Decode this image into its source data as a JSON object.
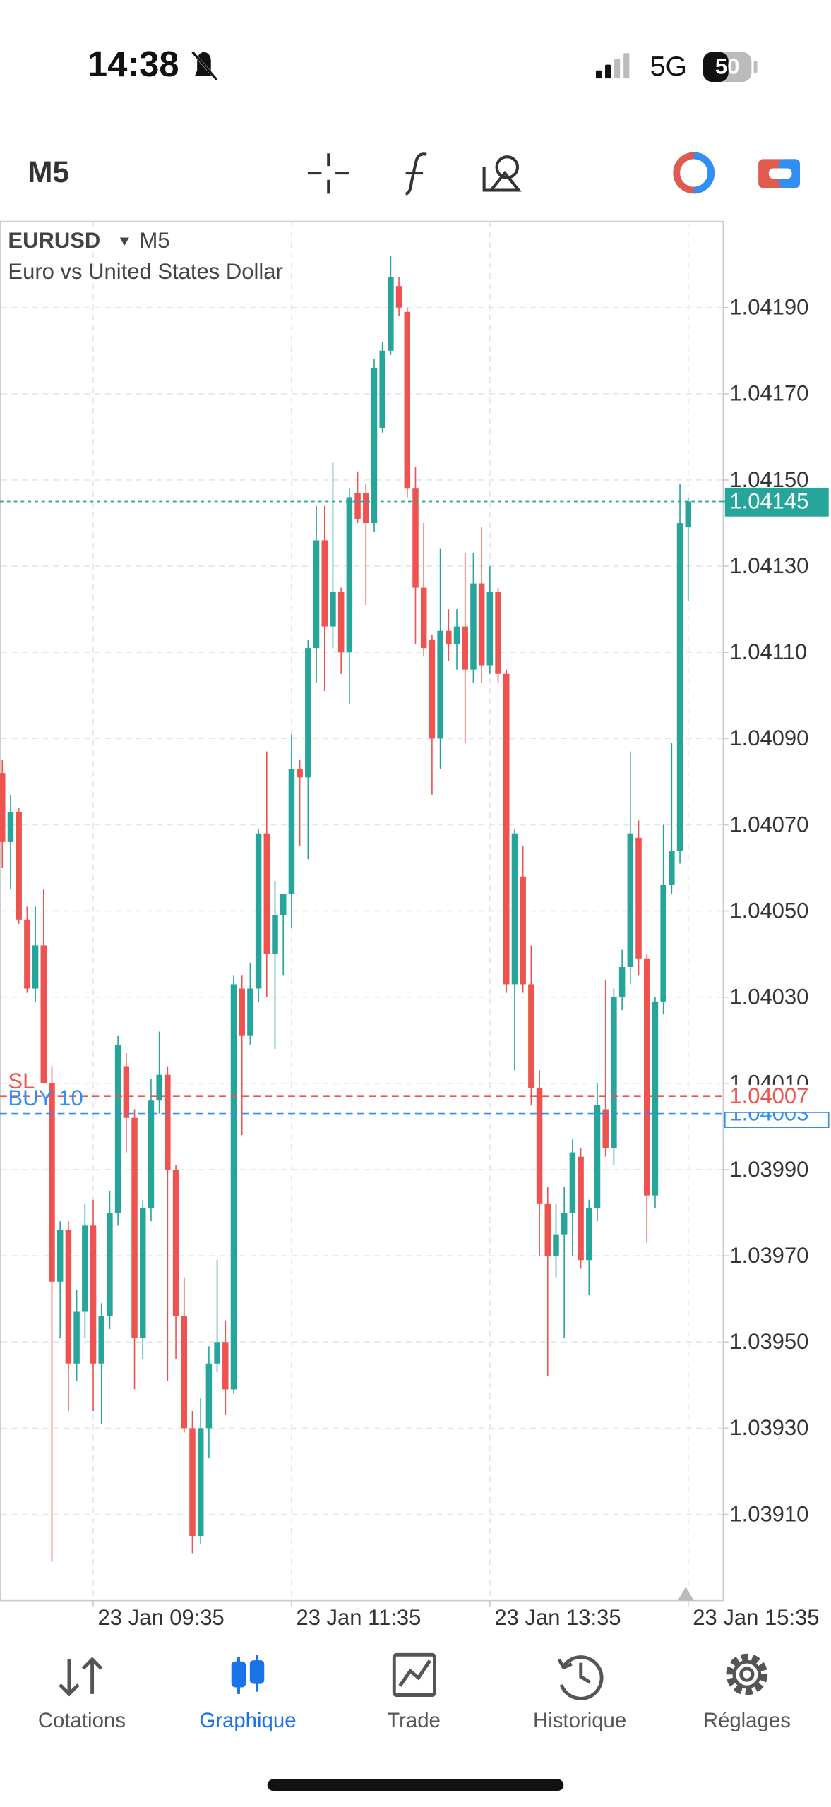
{
  "status_bar": {
    "time": "14:38",
    "network": "5G",
    "battery": "50"
  },
  "toolbar": {
    "timeframe": "M5"
  },
  "chart_data": {
    "type": "candlestick",
    "symbol": "EURUSD",
    "description": "Euro vs United States Dollar",
    "categories": [
      null,
      null,
      null,
      null,
      null,
      null,
      null,
      null,
      null,
      null,
      null,
      "23 Jan 09:35",
      null,
      null,
      null,
      null,
      null,
      null,
      null,
      null,
      null,
      null,
      null,
      null,
      null,
      null,
      null,
      null,
      null,
      null,
      null,
      null,
      null,
      null,
      null,
      "23 Jan 11:35",
      null,
      null,
      null,
      null,
      null,
      null,
      null,
      null,
      null,
      null,
      null,
      null,
      null,
      null,
      null,
      null,
      null,
      null,
      null,
      null,
      null,
      null,
      null,
      "23 Jan 13:35",
      null,
      null,
      null,
      null,
      null,
      null,
      null,
      null,
      null,
      null,
      null,
      null,
      null,
      null,
      null,
      null,
      null,
      null,
      null,
      null,
      null,
      null,
      null,
      "23 Jan 15:35"
    ],
    "open": [
      1.04082,
      1.04066,
      1.04073,
      1.04048,
      1.04032,
      1.04042,
      1.0401,
      1.03964,
      1.03976,
      1.03945,
      1.03957,
      1.03977,
      1.03945,
      1.03956,
      1.0398,
      1.04014,
      1.04002,
      1.03951,
      1.03981,
      1.04006,
      1.04012,
      1.0399,
      1.03956,
      1.0393,
      1.03905,
      1.0393,
      1.03945,
      1.0395,
      1.03939,
      1.04032,
      1.04021,
      1.04032,
      1.04068,
      1.0404,
      1.04049,
      1.04054,
      1.04083,
      1.04081,
      1.04111,
      1.04136,
      1.04116,
      1.04124,
      1.0411,
      1.04147,
      1.04147,
      1.0414,
      1.04162,
      1.0418,
      1.04195,
      1.04189,
      1.04148,
      1.04125,
      1.04113,
      1.0409,
      1.04115,
      1.04112,
      1.04116,
      1.04106,
      1.04126,
      1.04107,
      1.04124,
      1.04105,
      1.04033,
      1.04058,
      1.04033,
      1.04009,
      1.03982,
      1.0397,
      1.03975,
      1.0398,
      1.03993,
      1.03969,
      1.03981,
      1.04004,
      1.03995,
      1.0403,
      1.04037,
      1.04067,
      1.04039,
      1.03984,
      1.04029,
      1.04056,
      1.04064,
      1.04139
    ],
    "high": [
      1.04085,
      1.04077,
      1.04074,
      1.04051,
      1.04051,
      1.04055,
      1.04014,
      1.03978,
      1.03978,
      1.03962,
      1.03982,
      1.03983,
      1.03959,
      1.03985,
      1.04021,
      1.04017,
      1.04004,
      1.03983,
      1.04011,
      1.04022,
      1.04014,
      1.03991,
      1.03965,
      1.03934,
      1.03937,
      1.03949,
      1.03969,
      1.03955,
      1.04035,
      1.04035,
      1.04038,
      1.04069,
      1.04087,
      1.04057,
      1.04051,
      1.04091,
      1.04085,
      1.04113,
      1.04144,
      1.04144,
      1.04154,
      1.04125,
      1.04148,
      1.04152,
      1.04149,
      1.04178,
      1.04182,
      1.04202,
      1.04197,
      1.0419,
      1.04153,
      1.0414,
      1.04114,
      1.04134,
      1.0412,
      1.0412,
      1.04133,
      1.04133,
      1.04139,
      1.0413,
      1.04125,
      1.04106,
      1.04069,
      1.04065,
      1.04042,
      1.04013,
      1.03986,
      1.03982,
      1.03986,
      1.03997,
      1.03995,
      1.03983,
      1.0401,
      1.04034,
      1.04032,
      1.04041,
      1.04087,
      1.04071,
      1.0404,
      1.0403,
      1.0407,
      1.04089,
      1.04149,
      1.04146
    ],
    "low": [
      1.0406,
      1.04055,
      1.04047,
      1.04031,
      1.04029,
      1.0401,
      1.03899,
      1.03951,
      1.03934,
      1.03941,
      1.03951,
      1.03934,
      1.03931,
      1.03953,
      1.03977,
      1.03994,
      1.03939,
      1.03946,
      1.03978,
      1.04003,
      1.03941,
      1.03946,
      1.03929,
      1.03901,
      1.03903,
      1.03923,
      1.03943,
      1.03933,
      1.03938,
      1.03998,
      1.04019,
      1.04029,
      1.0403,
      1.04018,
      1.04035,
      1.04046,
      1.04065,
      1.04062,
      1.04103,
      1.04101,
      1.04111,
      1.04105,
      1.04098,
      1.0414,
      1.04121,
      1.04138,
      1.04161,
      1.04179,
      1.04188,
      1.04146,
      1.04112,
      1.04109,
      1.04077,
      1.04083,
      1.04108,
      1.04106,
      1.04089,
      1.04103,
      1.04103,
      1.04105,
      1.04103,
      1.04031,
      1.04013,
      1.04031,
      1.04005,
      1.0397,
      1.03942,
      1.03965,
      1.03951,
      1.0397,
      1.03967,
      1.03961,
      1.03978,
      1.03993,
      1.03991,
      1.04027,
      1.04033,
      1.04035,
      1.03973,
      1.03981,
      1.04026,
      1.04054,
      1.04061,
      1.04122
    ],
    "close": [
      1.04066,
      1.04073,
      1.04048,
      1.04032,
      1.04042,
      1.0401,
      1.03964,
      1.03976,
      1.03945,
      1.03957,
      1.03977,
      1.03945,
      1.03956,
      1.0398,
      1.04019,
      1.04002,
      1.03951,
      1.03981,
      1.04006,
      1.04012,
      1.0399,
      1.03956,
      1.0393,
      1.03905,
      1.0393,
      1.03945,
      1.0395,
      1.03939,
      1.04033,
      1.04021,
      1.04032,
      1.04068,
      1.0404,
      1.04049,
      1.04054,
      1.04083,
      1.04081,
      1.04111,
      1.04136,
      1.04116,
      1.04124,
      1.0411,
      1.04146,
      1.04141,
      1.0414,
      1.04176,
      1.0418,
      1.04197,
      1.0419,
      1.04148,
      1.04125,
      1.04111,
      1.0409,
      1.04115,
      1.04112,
      1.04116,
      1.04106,
      1.04126,
      1.04107,
      1.04124,
      1.04105,
      1.04033,
      1.04068,
      1.04033,
      1.04009,
      1.03982,
      1.0397,
      1.03975,
      1.0398,
      1.03994,
      1.03969,
      1.03981,
      1.04005,
      1.03995,
      1.0403,
      1.04037,
      1.04068,
      1.04039,
      1.03984,
      1.04029,
      1.04056,
      1.04064,
      1.0414,
      1.04145
    ],
    "up_color": "#26a69a",
    "down_color": "#ef5350",
    "ylim": [
      1.0389,
      1.0421
    ],
    "yticks": [
      {
        "value": 1.0391,
        "label": "1.03910"
      },
      {
        "value": 1.0393,
        "label": "1.03930"
      },
      {
        "value": 1.0395,
        "label": "1.03950"
      },
      {
        "value": 1.0397,
        "label": "1.03970"
      },
      {
        "value": 1.0399,
        "label": "1.03990"
      },
      {
        "value": 1.0401,
        "label": "1.04010"
      },
      {
        "value": 1.0403,
        "label": "1.04030"
      },
      {
        "value": 1.0405,
        "label": "1.04050"
      },
      {
        "value": 1.0407,
        "label": "1.04070"
      },
      {
        "value": 1.0409,
        "label": "1.04090"
      },
      {
        "value": 1.0411,
        "label": "1.04110"
      },
      {
        "value": 1.0413,
        "label": "1.04130"
      },
      {
        "value": 1.0415,
        "label": "1.04150"
      },
      {
        "value": 1.0417,
        "label": "1.04170"
      },
      {
        "value": 1.0419,
        "label": "1.04190"
      }
    ],
    "grid": true,
    "price_lines": [
      {
        "value": 1.04145,
        "color": "#26a69a"
      },
      {
        "name": "SL",
        "value": 1.04007,
        "color": "#ef5350"
      },
      {
        "name": "BUY 10",
        "value": 1.04003,
        "color": "#2f8ff5"
      }
    ]
  },
  "nav": {
    "items": [
      "Cotations",
      "Graphique",
      "Trade",
      "Historique",
      "Réglages"
    ],
    "active": "Graphique"
  }
}
